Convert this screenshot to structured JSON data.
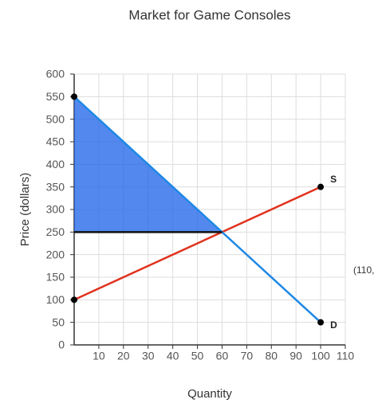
{
  "chart_data": {
    "type": "line",
    "title": "Market for Game Consoles",
    "xlabel": "Quantity",
    "ylabel": "Price (dollars)",
    "xlim": [
      0,
      110
    ],
    "xticks": [
      10,
      20,
      30,
      40,
      50,
      60,
      70,
      80,
      90,
      100,
      110
    ],
    "ylim": [
      0,
      600
    ],
    "yticks": [
      0,
      50,
      100,
      150,
      200,
      250,
      300,
      350,
      400,
      450,
      500,
      550,
      600
    ],
    "grid": true,
    "series": [
      {
        "name": "S",
        "color": "#e0321e",
        "x": [
          0,
          100
        ],
        "values": [
          100,
          350
        ]
      },
      {
        "name": "D",
        "color": "#1e88e5",
        "x": [
          0,
          100
        ],
        "values": [
          550,
          50
        ]
      }
    ],
    "shaded_region": {
      "color": "#1a62e8",
      "x": [
        0,
        0,
        60
      ],
      "values": [
        550,
        250,
        250
      ]
    },
    "price_line": {
      "color": "#111111",
      "x": [
        0,
        60
      ],
      "values": [
        250,
        250
      ]
    },
    "annotation": "(110,"
  }
}
